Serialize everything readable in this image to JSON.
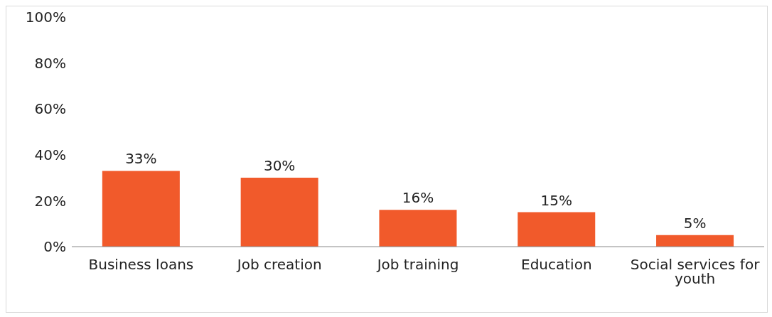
{
  "chart_data": {
    "type": "bar",
    "categories": [
      "Business loans",
      "Job creation",
      "Job training",
      "Education",
      "Social services for youth"
    ],
    "values": [
      33,
      30,
      16,
      15,
      5
    ],
    "value_labels": [
      "33%",
      "30%",
      "16%",
      "15%",
      "5%"
    ],
    "color": "#f15a2b",
    "ylim": [
      0,
      100
    ],
    "yticks": [
      {
        "value": 0,
        "label": "0%"
      },
      {
        "value": 20,
        "label": "20%"
      },
      {
        "value": 40,
        "label": "40%"
      },
      {
        "value": 60,
        "label": "60%"
      },
      {
        "value": 80,
        "label": "80%"
      },
      {
        "value": 100,
        "label": "100%"
      }
    ],
    "grid": false,
    "legend": false
  }
}
